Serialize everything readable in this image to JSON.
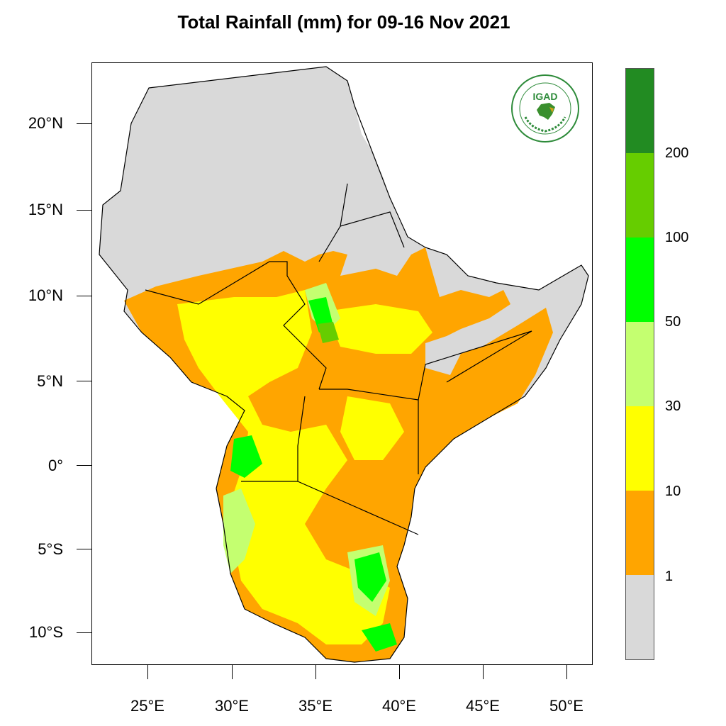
{
  "title": "Total Rainfall (mm) for 09-16 Nov 2021",
  "map": {
    "lat_ticks": [
      "20°N",
      "15°N",
      "10°N",
      "5°N",
      "0°",
      "5°S",
      "10°S"
    ],
    "lon_ticks": [
      "25°E",
      "30°E",
      "35°E",
      "40°E",
      "45°E",
      "50°E"
    ]
  },
  "colorbar": {
    "bin_labels": [
      "200",
      "100",
      "50",
      "30",
      "10",
      "1"
    ],
    "colors": [
      "#228b22",
      "#66cd00",
      "#00ff00",
      "#c4ff70",
      "#ffff00",
      "#ffa500",
      "#d9d9d9"
    ]
  },
  "legend_colors": {
    "no_rain": "#d9d9d9",
    "light": "#ffa500",
    "moderate": "#ffff00",
    "heavy": "#c4ff70",
    "very_heavy": "#00ff00"
  },
  "logo": {
    "text": "IGAD",
    "ring_text_top": "INTERGOVERNMENTAL AUTHORITY ON DEVELOPMENT",
    "ring_text_bottom": "AUTORITE INTERGOUVERNEMENTALE POUR LE DEVELOPPEMENT"
  }
}
